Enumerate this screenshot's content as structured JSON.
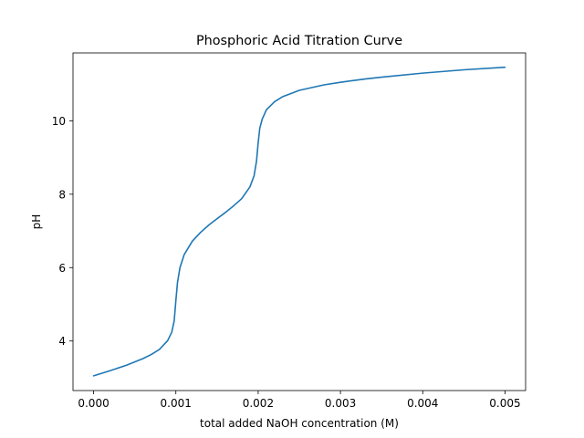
{
  "chart_data": {
    "type": "line",
    "title": "Phosphoric Acid Titration Curve",
    "xlabel": "total added NaOH concentration (M)",
    "ylabel": "pH",
    "xlim": [
      -0.00025,
      0.00525
    ],
    "ylim": [
      2.65,
      11.85
    ],
    "grid": false,
    "xticks": [
      {
        "value": 0.0,
        "label": "0.000"
      },
      {
        "value": 0.001,
        "label": "0.001"
      },
      {
        "value": 0.002,
        "label": "0.002"
      },
      {
        "value": 0.003,
        "label": "0.003"
      },
      {
        "value": 0.004,
        "label": "0.004"
      },
      {
        "value": 0.005,
        "label": "0.005"
      }
    ],
    "yticks": [
      {
        "value": 4,
        "label": "4"
      },
      {
        "value": 6,
        "label": "6"
      },
      {
        "value": 8,
        "label": "8"
      },
      {
        "value": 10,
        "label": "10"
      }
    ],
    "series": [
      {
        "color": "#1f77b4",
        "x": [
          0.0,
          0.0002,
          0.0004,
          0.0006,
          0.0007,
          0.0008,
          0.0009,
          0.00095,
          0.00098,
          0.001,
          0.00102,
          0.00105,
          0.0011,
          0.0012,
          0.0013,
          0.0014,
          0.0015,
          0.0016,
          0.0017,
          0.0018,
          0.0019,
          0.00195,
          0.00198,
          0.002,
          0.00202,
          0.00205,
          0.0021,
          0.0022,
          0.0023,
          0.0025,
          0.0028,
          0.003,
          0.0033,
          0.0035,
          0.004,
          0.0045,
          0.005
        ],
        "y": [
          3.05,
          3.19,
          3.34,
          3.52,
          3.63,
          3.77,
          4.01,
          4.24,
          4.55,
          5.1,
          5.6,
          6.0,
          6.35,
          6.72,
          6.96,
          7.16,
          7.33,
          7.5,
          7.68,
          7.88,
          8.2,
          8.5,
          8.9,
          9.4,
          9.8,
          10.05,
          10.3,
          10.52,
          10.66,
          10.83,
          10.98,
          11.05,
          11.14,
          11.19,
          11.3,
          11.39,
          11.46
        ]
      }
    ]
  }
}
